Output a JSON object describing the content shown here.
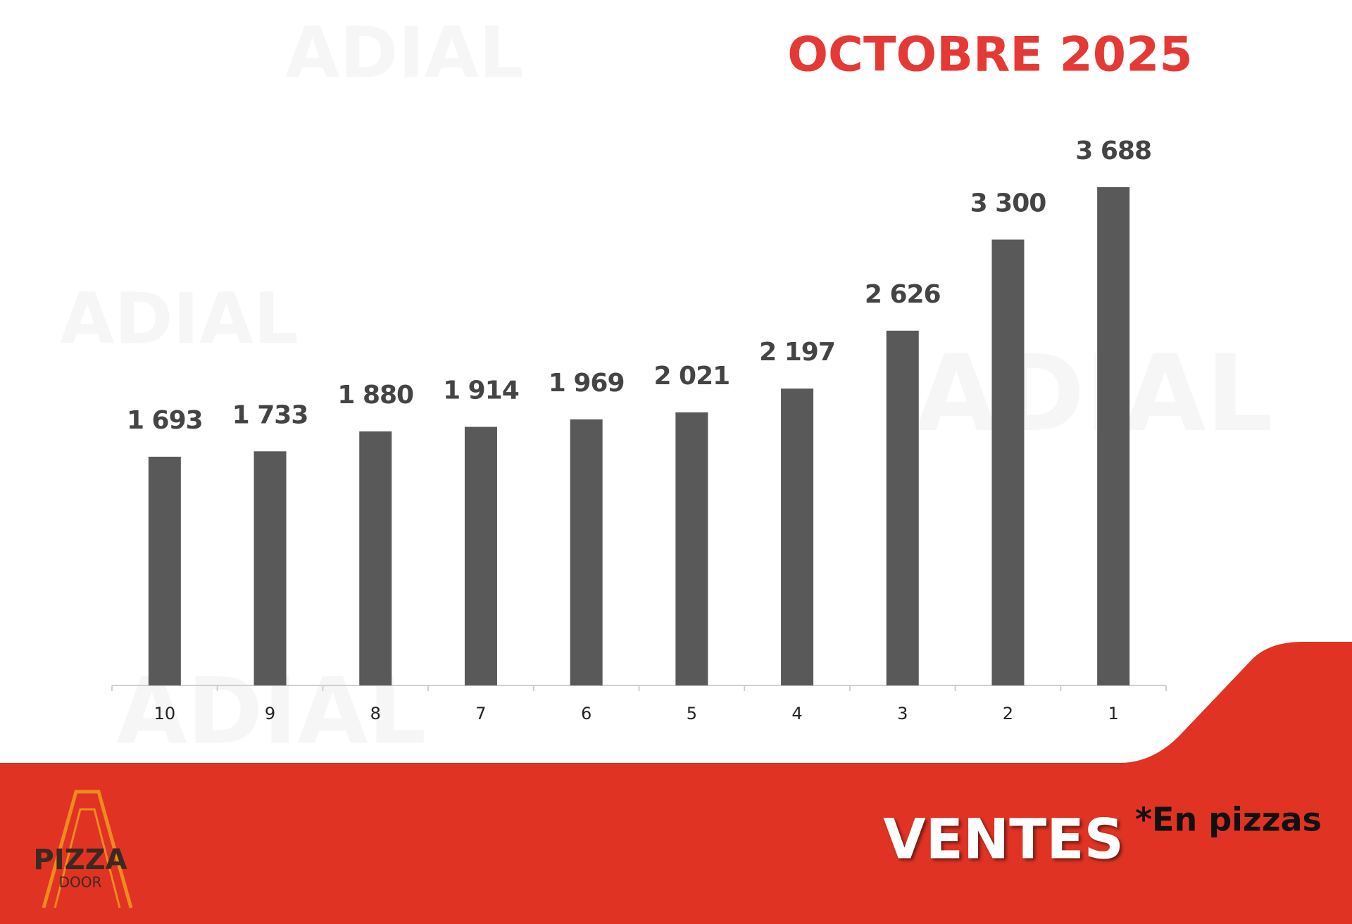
{
  "chart_data": {
    "type": "bar",
    "title": "OCTOBRE 2025",
    "categories": [
      "10",
      "9",
      "8",
      "7",
      "6",
      "5",
      "4",
      "3",
      "2",
      "1"
    ],
    "values": [
      1693,
      1733,
      1880,
      1914,
      1969,
      2021,
      2197,
      2626,
      3300,
      3688
    ],
    "value_labels": [
      "1 693",
      "1 733",
      "1 880",
      "1 914",
      "1 969",
      "2 021",
      "2 197",
      "2 626",
      "3 300",
      "3 688"
    ],
    "color": "#595959"
  },
  "footer": {
    "title": "VENTES",
    "note": "*En pizzas"
  },
  "logo": {
    "name": "PIZZA",
    "sub": "DOOR"
  },
  "watermark": "ADIAL"
}
